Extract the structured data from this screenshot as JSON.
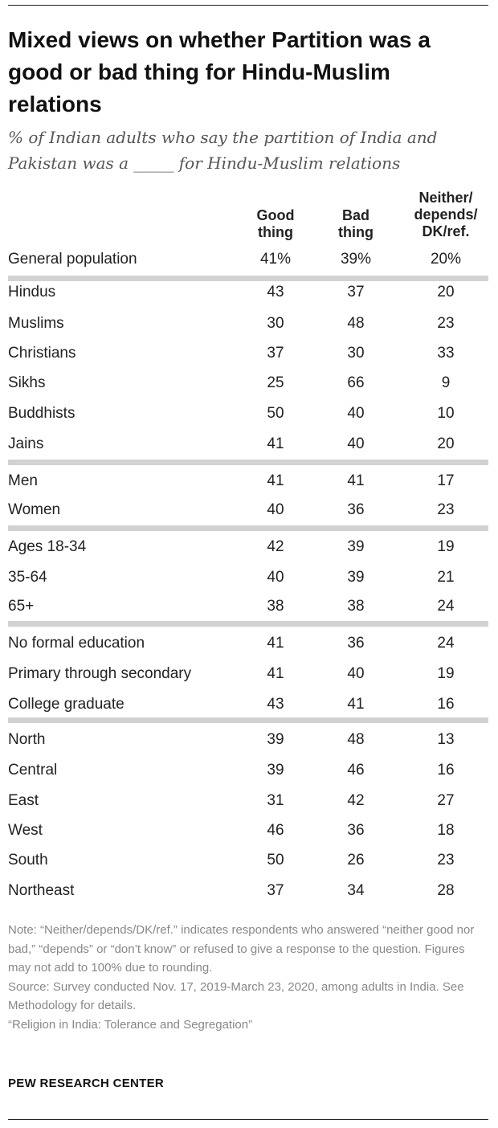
{
  "title": "Mixed views on whether Partition was a good or bad thing for Hindu-Muslim relations",
  "subtitle": "% of Indian adults who say the partition of India and Pakistan was a _____ for Hindu-Muslim relations",
  "columns": {
    "good": "Good thing",
    "bad": "Bad thing",
    "neither": "Neither/ depends/ DK/ref."
  },
  "chart_data": {
    "type": "table",
    "columns": [
      "Good thing",
      "Bad thing",
      "Neither/depends/DK/ref."
    ],
    "rows": [
      {
        "label": "General population",
        "values": [
          "41%",
          "39%",
          "20%"
        ],
        "group": 0
      },
      {
        "label": "Hindus",
        "values": [
          "43",
          "37",
          "20"
        ],
        "group": 1
      },
      {
        "label": "Muslims",
        "values": [
          "30",
          "48",
          "23"
        ],
        "group": 1
      },
      {
        "label": "Christians",
        "values": [
          "37",
          "30",
          "33"
        ],
        "group": 1
      },
      {
        "label": "Sikhs",
        "values": [
          "25",
          "66",
          "9"
        ],
        "group": 1
      },
      {
        "label": "Buddhists",
        "values": [
          "50",
          "40",
          "10"
        ],
        "group": 1
      },
      {
        "label": "Jains",
        "values": [
          "41",
          "40",
          "20"
        ],
        "group": 1
      },
      {
        "label": "Men",
        "values": [
          "41",
          "41",
          "17"
        ],
        "group": 2
      },
      {
        "label": "Women",
        "values": [
          "40",
          "36",
          "23"
        ],
        "group": 2
      },
      {
        "label": "Ages 18-34",
        "values": [
          "42",
          "39",
          "19"
        ],
        "group": 3
      },
      {
        "label": "35-64",
        "values": [
          "40",
          "39",
          "21"
        ],
        "group": 3
      },
      {
        "label": "65+",
        "values": [
          "38",
          "38",
          "24"
        ],
        "group": 3
      },
      {
        "label": "No formal education",
        "values": [
          "41",
          "36",
          "24"
        ],
        "group": 4
      },
      {
        "label": "Primary through secondary",
        "values": [
          "41",
          "40",
          "19"
        ],
        "group": 4
      },
      {
        "label": "College graduate",
        "values": [
          "43",
          "41",
          "16"
        ],
        "group": 4
      },
      {
        "label": "North",
        "values": [
          "39",
          "48",
          "13"
        ],
        "group": 5
      },
      {
        "label": "Central",
        "values": [
          "39",
          "46",
          "16"
        ],
        "group": 5
      },
      {
        "label": "East",
        "values": [
          "31",
          "42",
          "27"
        ],
        "group": 5
      },
      {
        "label": "West",
        "values": [
          "46",
          "36",
          "18"
        ],
        "group": 5
      },
      {
        "label": "South",
        "values": [
          "50",
          "26",
          "23"
        ],
        "group": 5
      },
      {
        "label": "Northeast",
        "values": [
          "37",
          "34",
          "28"
        ],
        "group": 5
      }
    ]
  },
  "note": "Note: “Neither/depends/DK/ref.” indicates respondents who answered “neither good nor bad,” “depends” or “don’t know” or refused to give a response to the question. Figures may not add to 100% due to rounding.",
  "source": "Source: Survey conducted Nov. 17, 2019-March 23, 2020, among adults in India. See Methodology for details.",
  "report": "“Religion in India: Tolerance and Segregation”",
  "brand": "PEW RESEARCH CENTER",
  "colors": {
    "separator": "#d2d2d2",
    "note_text": "#888888",
    "subtitle_text": "#555555"
  }
}
